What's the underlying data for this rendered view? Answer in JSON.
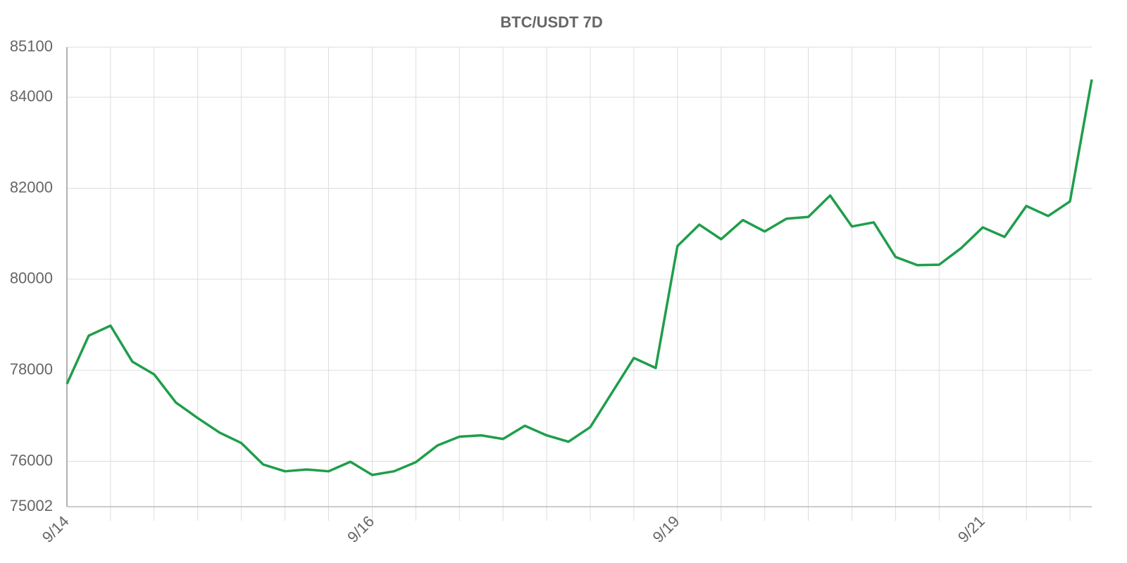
{
  "chart_data": {
    "type": "line",
    "title": "BTC/USDT 7D",
    "categories": [
      "9/14",
      null,
      null,
      null,
      null,
      null,
      null,
      null,
      null,
      null,
      null,
      null,
      null,
      null,
      "9/16",
      null,
      null,
      null,
      null,
      null,
      null,
      null,
      null,
      null,
      null,
      null,
      null,
      null,
      "9/19",
      null,
      null,
      null,
      null,
      null,
      null,
      null,
      null,
      null,
      null,
      null,
      null,
      null,
      "9/21",
      null,
      null,
      null,
      null,
      null
    ],
    "series": [
      {
        "name": "BTC/USDT",
        "color": "#1f9e4a",
        "values": [
          77700,
          78760,
          78980,
          78190,
          77910,
          77290,
          76950,
          76630,
          76400,
          75930,
          75780,
          75820,
          75780,
          75990,
          75700,
          75780,
          75980,
          76350,
          76540,
          76570,
          76490,
          76780,
          76570,
          76430,
          76750,
          77510,
          78270,
          78050,
          80730,
          81200,
          80880,
          81300,
          81050,
          81330,
          81370,
          81840,
          81160,
          81250,
          80490,
          80310,
          80320,
          80680,
          81140,
          80930,
          81610,
          81390,
          81710,
          84390
        ]
      }
    ],
    "ylim": [
      75002,
      85100
    ],
    "yticks": [
      75002,
      76000,
      78000,
      80000,
      82000,
      84000,
      85100
    ],
    "grid": true
  }
}
